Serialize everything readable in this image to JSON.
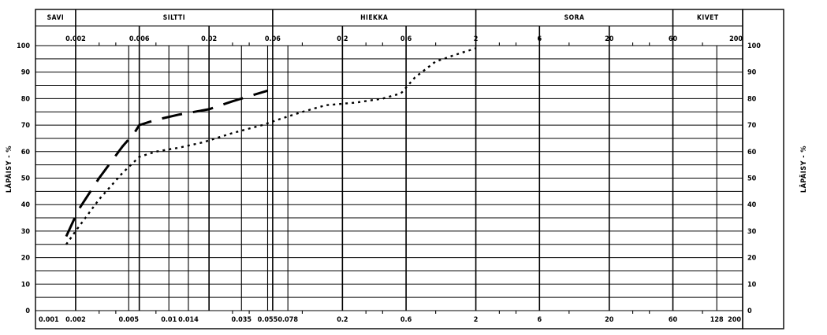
{
  "chart_data": {
    "type": "line",
    "x_scale": "log",
    "xlim": [
      0.001,
      200
    ],
    "ylim": [
      0,
      100
    ],
    "grid": true,
    "legend": "none",
    "ylabel_left": "LÄPÄISY - %",
    "ylabel_right": "LÄPÄISY - %",
    "zones": [
      {
        "label": "SAVI",
        "from": 0.001,
        "to": 0.002
      },
      {
        "label": "SILTTI",
        "from": 0.002,
        "to": 0.06
      },
      {
        "label": "HIEKKA",
        "from": 0.06,
        "to": 2
      },
      {
        "label": "SORA",
        "from": 2,
        "to": 60
      },
      {
        "label": "KIVET",
        "from": 60,
        "to": 200
      }
    ],
    "top_ticks": [
      {
        "label": "0.002",
        "value": 0.002
      },
      {
        "label": "0.006",
        "value": 0.006
      },
      {
        "label": "0.02",
        "value": 0.02
      },
      {
        "label": "0.06",
        "value": 0.06
      },
      {
        "label": "0.2",
        "value": 0.2
      },
      {
        "label": "0.6",
        "value": 0.6
      },
      {
        "label": "2",
        "value": 2
      },
      {
        "label": "6",
        "value": 6
      },
      {
        "label": "20",
        "value": 20
      },
      {
        "label": "60",
        "value": 60
      },
      {
        "label": "200",
        "value": 200
      }
    ],
    "bottom_ticks": [
      {
        "label": "0.001",
        "value": 0.001
      },
      {
        "label": "0.002",
        "value": 0.002
      },
      {
        "label": "0.005",
        "value": 0.005
      },
      {
        "label": "0.01",
        "value": 0.01
      },
      {
        "label": "0.014",
        "value": 0.014
      },
      {
        "label": "0.035",
        "value": 0.035
      },
      {
        "label": "0.055",
        "value": 0.055
      },
      {
        "label": "0.078",
        "value": 0.078
      },
      {
        "label": "0.2",
        "value": 0.2
      },
      {
        "label": "0.6",
        "value": 0.6
      },
      {
        "label": "2",
        "value": 2
      },
      {
        "label": "6",
        "value": 6
      },
      {
        "label": "20",
        "value": 20
      },
      {
        "label": "60",
        "value": 60
      },
      {
        "label": "128",
        "value": 128
      },
      {
        "label": "200",
        "value": 200
      }
    ],
    "extra_vertical_lines": [
      0.005,
      0.01,
      0.014,
      0.035,
      0.055,
      0.078,
      128
    ],
    "y_ticks": [
      0,
      10,
      20,
      30,
      40,
      50,
      60,
      70,
      80,
      90,
      100
    ],
    "y_minor_step": 5,
    "series": [
      {
        "style": "dashed",
        "x": [
          0.0017,
          0.0021,
          0.003,
          0.0045,
          0.0055,
          0.006,
          0.008,
          0.012,
          0.02,
          0.03,
          0.055
        ],
        "y": [
          28,
          38,
          50,
          62,
          67,
          70,
          72,
          74,
          76,
          79,
          83
        ]
      },
      {
        "style": "dotted",
        "x": [
          0.0017,
          0.002,
          0.003,
          0.0045,
          0.006,
          0.008,
          0.012,
          0.018,
          0.03,
          0.05,
          0.07,
          0.1,
          0.15,
          0.25,
          0.4,
          0.55,
          0.7,
          1.0,
          1.5,
          2.0
        ],
        "y": [
          25,
          30,
          42,
          52,
          58,
          60,
          61.5,
          63.5,
          67,
          70,
          72.5,
          75,
          77.5,
          78.5,
          80,
          82,
          88,
          94,
          97,
          99
        ]
      }
    ]
  }
}
